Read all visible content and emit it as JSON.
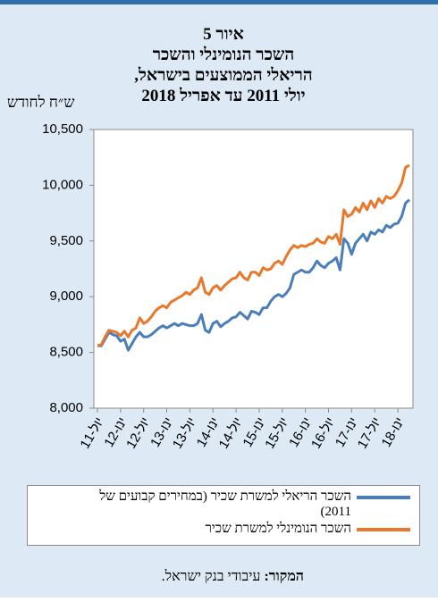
{
  "header": {
    "figure": "איור 5",
    "title_lines": [
      "השכר הנומינלי והשכר",
      "הריאלי הממוצעים בישראל,",
      "יולי 2011 עד אפריל 2018"
    ]
  },
  "chart_data": {
    "type": "line",
    "y_label": "ש״ח לחודש",
    "categories": [
      "יול-11",
      null,
      null,
      null,
      null,
      null,
      "ינו-12",
      null,
      null,
      null,
      null,
      null,
      "יול-12",
      null,
      null,
      null,
      null,
      null,
      "ינו-13",
      null,
      null,
      null,
      null,
      null,
      "יול-13",
      null,
      null,
      null,
      null,
      null,
      "ינו-14",
      null,
      null,
      null,
      null,
      null,
      "יול-14",
      null,
      null,
      null,
      null,
      null,
      "ינו-15",
      null,
      null,
      null,
      null,
      null,
      "יול-15",
      null,
      null,
      null,
      null,
      null,
      "ינו-16",
      null,
      null,
      null,
      null,
      null,
      "יול-16",
      null,
      null,
      null,
      null,
      null,
      "ינו-17",
      null,
      null,
      null,
      null,
      null,
      "יול-17",
      null,
      null,
      null,
      null,
      null,
      "ינו-18",
      null,
      null,
      null
    ],
    "series": [
      {
        "name": "השכר הריאלי למשרת שכיר (במחירים קבועים של 2011)",
        "color": "#4a7ebb",
        "values": [
          8560,
          8560,
          8620,
          8680,
          8660,
          8650,
          8600,
          8620,
          8520,
          8580,
          8640,
          8680,
          8640,
          8640,
          8660,
          8690,
          8720,
          8740,
          8720,
          8740,
          8760,
          8740,
          8760,
          8750,
          8740,
          8740,
          8760,
          8840,
          8700,
          8680,
          8760,
          8780,
          8730,
          8760,
          8780,
          8810,
          8820,
          8860,
          8830,
          8800,
          8870,
          8860,
          8840,
          8900,
          8900,
          8960,
          9000,
          9020,
          9000,
          9030,
          9080,
          9200,
          9220,
          9240,
          9220,
          9220,
          9260,
          9320,
          9280,
          9260,
          9300,
          9320,
          9350,
          9240,
          9520,
          9480,
          9380,
          9480,
          9520,
          9560,
          9500,
          9580,
          9560,
          9600,
          9580,
          9640,
          9620,
          9650,
          9660,
          9720,
          9840,
          9870
        ]
      },
      {
        "name": "השכר הנומינלי למשרת שכיר",
        "color": "#e8782a",
        "values": [
          8560,
          8570,
          8640,
          8700,
          8690,
          8680,
          8650,
          8690,
          8640,
          8700,
          8720,
          8810,
          8760,
          8780,
          8820,
          8870,
          8900,
          8920,
          8900,
          8950,
          8970,
          8990,
          9010,
          9040,
          9020,
          9060,
          9080,
          9170,
          9040,
          9020,
          9080,
          9100,
          9060,
          9100,
          9130,
          9160,
          9170,
          9220,
          9170,
          9150,
          9220,
          9220,
          9190,
          9260,
          9240,
          9250,
          9300,
          9320,
          9290,
          9360,
          9420,
          9460,
          9440,
          9460,
          9450,
          9470,
          9480,
          9520,
          9490,
          9480,
          9540,
          9520,
          9560,
          9470,
          9780,
          9720,
          9740,
          9800,
          9760,
          9840,
          9780,
          9860,
          9800,
          9880,
          9840,
          9900,
          9880,
          9900,
          9950,
          10020,
          10160,
          10180
        ]
      }
    ],
    "ylim": [
      8000,
      10500
    ],
    "yticks": [
      {
        "value": 8000,
        "label": "8,000"
      },
      {
        "value": 8500,
        "label": "8,500"
      },
      {
        "value": 9000,
        "label": "9,000"
      },
      {
        "value": 9500,
        "label": "9,500"
      },
      {
        "value": 10000,
        "label": "10,000"
      },
      {
        "value": 10500,
        "label": "10,500"
      }
    ]
  },
  "source": {
    "label": "המקור:",
    "text": "עיבודי בנק ישראל."
  }
}
